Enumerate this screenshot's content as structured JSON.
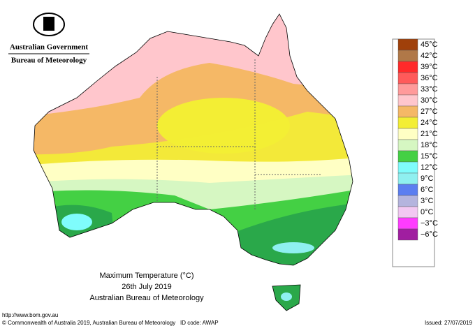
{
  "header": {
    "government": "Australian Government",
    "agency": "Bureau of Meteorology"
  },
  "title": {
    "line1": "Maximum Temperature (°C)",
    "line2": "26th July 2019",
    "line3": "Australian Bureau of Meteorology"
  },
  "legend": [
    {
      "label": "45°C",
      "color": "#a0400a"
    },
    {
      "label": "42°C",
      "color": "#b07848"
    },
    {
      "label": "39°C",
      "color": "#ff2a2a"
    },
    {
      "label": "36°C",
      "color": "#ff5a5a"
    },
    {
      "label": "33°C",
      "color": "#ff9a9a"
    },
    {
      "label": "30°C",
      "color": "#ffc6cc"
    },
    {
      "label": "27°C",
      "color": "#f5b866"
    },
    {
      "label": "24°C",
      "color": "#f3ee34"
    },
    {
      "label": "21°C",
      "color": "#ffffc4"
    },
    {
      "label": "18°C",
      "color": "#d6f7c2"
    },
    {
      "label": "15°C",
      "color": "#44d044"
    },
    {
      "label": "12°C",
      "color": "#7ffcfc"
    },
    {
      "label": "9°C",
      "color": "#8ff0f0"
    },
    {
      "label": "6°C",
      "color": "#5b7ef0"
    },
    {
      "label": "3°C",
      "color": "#b4b4de"
    },
    {
      "label": "0°C",
      "color": "#f2c8f2"
    },
    {
      "label": "−3°C",
      "color": "#ff3cff"
    },
    {
      "label": "−6°C",
      "color": "#a01ea0"
    }
  ],
  "footer": {
    "url": "http://www.bom.gov.au",
    "copyright": "© Commonwealth of Australia 2019, Australian Bureau of Meteorology",
    "id_code": "ID code: AWAP",
    "issued": "Issued: 27/07/2019"
  }
}
